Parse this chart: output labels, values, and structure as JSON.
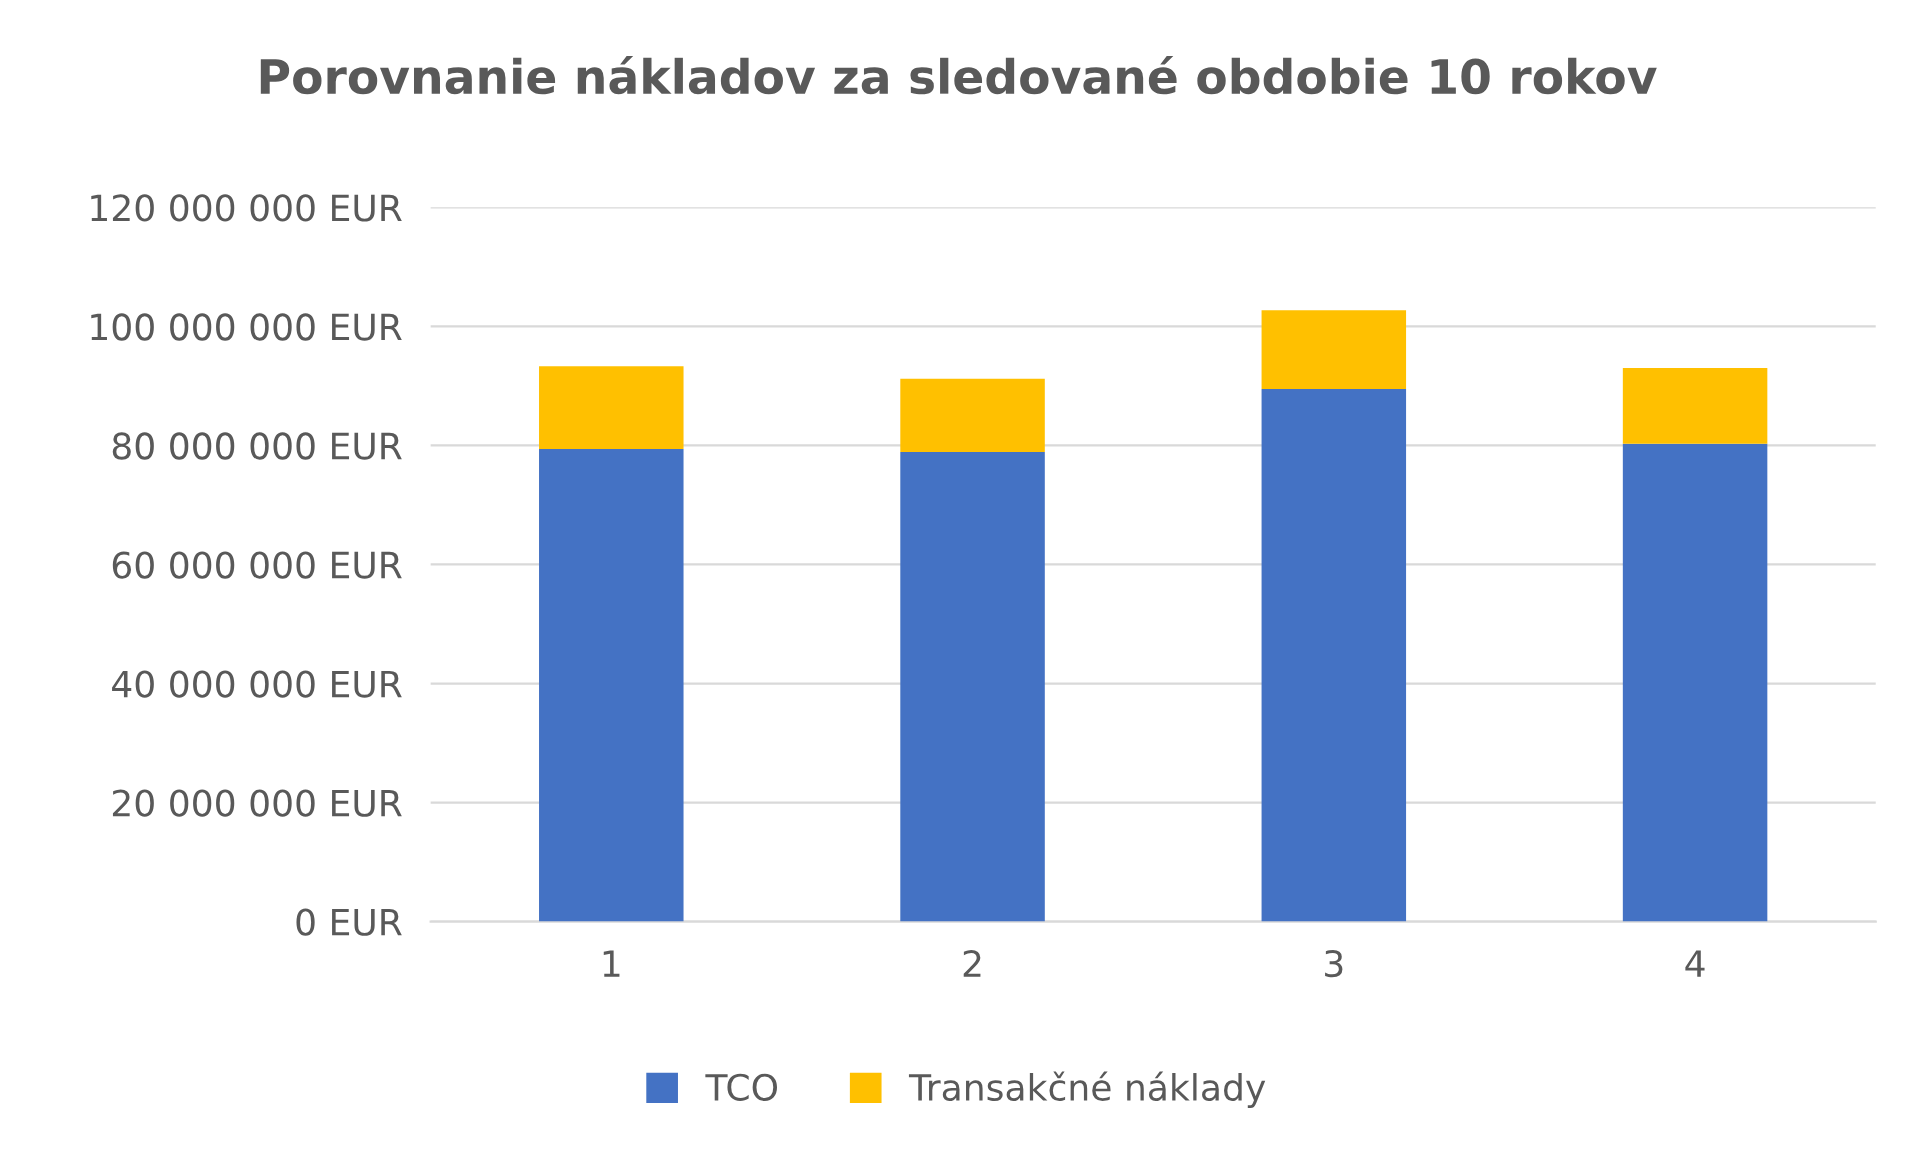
{
  "chart_data": {
    "type": "bar",
    "title": "Porovnanie nákladov za sledované obdobie 10 rokov",
    "categories": [
      "1",
      "2",
      "3",
      "4"
    ],
    "stacked": true,
    "series": [
      {
        "name": "TCO",
        "color": "#4472c4",
        "values": [
          79400000,
          78900000,
          89500000,
          80300000
        ]
      },
      {
        "name": "Transakčné náklady",
        "color": "#ffc000",
        "values": [
          13900000,
          12300000,
          13200000,
          12700000
        ]
      }
    ],
    "ylim": [
      0,
      120000000
    ],
    "yticks": [
      {
        "value": 0,
        "label": "0 EUR"
      },
      {
        "value": 20000000,
        "label": "20 000 000 EUR"
      },
      {
        "value": 40000000,
        "label": "40 000 000 EUR"
      },
      {
        "value": 60000000,
        "label": "60 000 000 EUR"
      },
      {
        "value": 80000000,
        "label": "80 000 000 EUR"
      },
      {
        "value": 100000000,
        "label": "100 000 000 EUR"
      },
      {
        "value": 120000000,
        "label": "120 000 000 EUR"
      }
    ],
    "grid": "y",
    "legend": "bottom"
  }
}
